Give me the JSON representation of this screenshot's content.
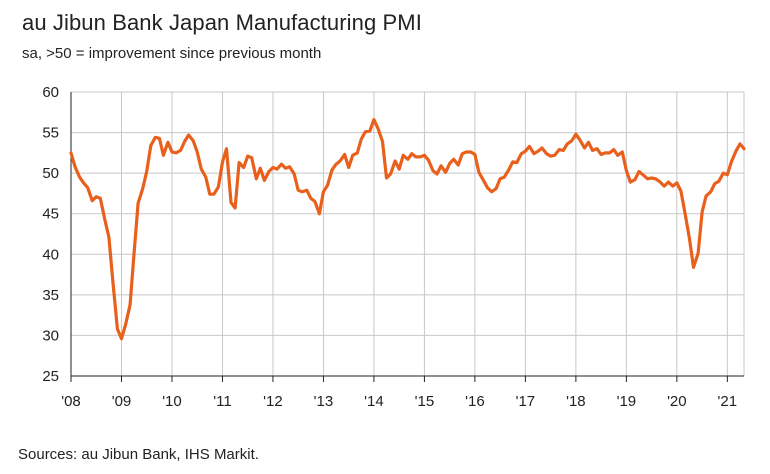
{
  "chart_data": {
    "type": "line",
    "title": "au Jibun Bank Japan Manufacturing PMI",
    "subtitle": "sa, >50 = improvement since previous month",
    "source": "Sources: au Jibun Bank, IHS Markit.",
    "xlabel": "",
    "ylabel": "",
    "ylim": [
      25,
      60
    ],
    "yticks": [
      25,
      30,
      35,
      40,
      45,
      50,
      55,
      60
    ],
    "x_start": 2008.0,
    "x_end": 2021.33,
    "xticks": [
      {
        "value": 2008,
        "label": "'08"
      },
      {
        "value": 2009,
        "label": "'09"
      },
      {
        "value": 2010,
        "label": "'10"
      },
      {
        "value": 2011,
        "label": "'11"
      },
      {
        "value": 2012,
        "label": "'12"
      },
      {
        "value": 2013,
        "label": "'13"
      },
      {
        "value": 2014,
        "label": "'14"
      },
      {
        "value": 2015,
        "label": "'15"
      },
      {
        "value": 2016,
        "label": "'16"
      },
      {
        "value": 2017,
        "label": "'17"
      },
      {
        "value": 2018,
        "label": "'18"
      },
      {
        "value": 2019,
        "label": "'19"
      },
      {
        "value": 2020,
        "label": "'20"
      },
      {
        "value": 2021,
        "label": "'21"
      }
    ],
    "grid": true,
    "series": [
      {
        "name": "au Jibun Bank Japan Manufacturing PMI",
        "color": "#E8601C",
        "points": [
          [
            2008.0,
            52.5
          ],
          [
            2008.08,
            50.8
          ],
          [
            2008.17,
            49.5
          ],
          [
            2008.25,
            48.8
          ],
          [
            2008.33,
            48.2
          ],
          [
            2008.42,
            46.6
          ],
          [
            2008.5,
            47.1
          ],
          [
            2008.58,
            46.9
          ],
          [
            2008.67,
            44.3
          ],
          [
            2008.75,
            42.1
          ],
          [
            2008.83,
            36.6
          ],
          [
            2008.92,
            30.8
          ],
          [
            2009.0,
            29.6
          ],
          [
            2009.08,
            31.3
          ],
          [
            2009.17,
            33.8
          ],
          [
            2009.25,
            40.2
          ],
          [
            2009.33,
            46.3
          ],
          [
            2009.42,
            48.1
          ],
          [
            2009.5,
            50.2
          ],
          [
            2009.58,
            53.4
          ],
          [
            2009.67,
            54.4
          ],
          [
            2009.75,
            54.3
          ],
          [
            2009.83,
            52.2
          ],
          [
            2009.92,
            53.8
          ],
          [
            2010.0,
            52.6
          ],
          [
            2010.08,
            52.5
          ],
          [
            2010.17,
            52.8
          ],
          [
            2010.25,
            53.9
          ],
          [
            2010.33,
            54.7
          ],
          [
            2010.42,
            54.0
          ],
          [
            2010.5,
            52.6
          ],
          [
            2010.58,
            50.5
          ],
          [
            2010.67,
            49.5
          ],
          [
            2010.75,
            47.4
          ],
          [
            2010.83,
            47.4
          ],
          [
            2010.92,
            48.3
          ],
          [
            2011.0,
            51.4
          ],
          [
            2011.08,
            53.0
          ],
          [
            2011.17,
            46.4
          ],
          [
            2011.25,
            45.7
          ],
          [
            2011.33,
            51.3
          ],
          [
            2011.42,
            50.7
          ],
          [
            2011.5,
            52.1
          ],
          [
            2011.58,
            51.9
          ],
          [
            2011.67,
            49.3
          ],
          [
            2011.75,
            50.6
          ],
          [
            2011.83,
            49.1
          ],
          [
            2011.92,
            50.2
          ],
          [
            2012.0,
            50.7
          ],
          [
            2012.08,
            50.5
          ],
          [
            2012.17,
            51.1
          ],
          [
            2012.25,
            50.6
          ],
          [
            2012.33,
            50.8
          ],
          [
            2012.42,
            49.9
          ],
          [
            2012.5,
            47.9
          ],
          [
            2012.58,
            47.7
          ],
          [
            2012.67,
            47.9
          ],
          [
            2012.75,
            46.9
          ],
          [
            2012.83,
            46.5
          ],
          [
            2012.92,
            45.0
          ],
          [
            2013.0,
            47.7
          ],
          [
            2013.08,
            48.5
          ],
          [
            2013.17,
            50.4
          ],
          [
            2013.25,
            51.1
          ],
          [
            2013.33,
            51.5
          ],
          [
            2013.42,
            52.3
          ],
          [
            2013.5,
            50.7
          ],
          [
            2013.58,
            52.2
          ],
          [
            2013.67,
            52.5
          ],
          [
            2013.75,
            54.2
          ],
          [
            2013.83,
            55.1
          ],
          [
            2013.92,
            55.2
          ],
          [
            2014.0,
            56.6
          ],
          [
            2014.08,
            55.5
          ],
          [
            2014.17,
            53.9
          ],
          [
            2014.25,
            49.4
          ],
          [
            2014.33,
            49.9
          ],
          [
            2014.42,
            51.5
          ],
          [
            2014.5,
            50.5
          ],
          [
            2014.58,
            52.2
          ],
          [
            2014.67,
            51.7
          ],
          [
            2014.75,
            52.4
          ],
          [
            2014.83,
            52.0
          ],
          [
            2014.92,
            52.0
          ],
          [
            2015.0,
            52.2
          ],
          [
            2015.08,
            51.6
          ],
          [
            2015.17,
            50.3
          ],
          [
            2015.25,
            49.9
          ],
          [
            2015.33,
            50.9
          ],
          [
            2015.42,
            50.1
          ],
          [
            2015.5,
            51.2
          ],
          [
            2015.58,
            51.7
          ],
          [
            2015.67,
            51.0
          ],
          [
            2015.75,
            52.4
          ],
          [
            2015.83,
            52.6
          ],
          [
            2015.92,
            52.6
          ],
          [
            2016.0,
            52.3
          ],
          [
            2016.08,
            50.1
          ],
          [
            2016.17,
            49.1
          ],
          [
            2016.25,
            48.2
          ],
          [
            2016.33,
            47.7
          ],
          [
            2016.42,
            48.1
          ],
          [
            2016.5,
            49.3
          ],
          [
            2016.58,
            49.5
          ],
          [
            2016.67,
            50.4
          ],
          [
            2016.75,
            51.4
          ],
          [
            2016.83,
            51.3
          ],
          [
            2016.92,
            52.4
          ],
          [
            2017.0,
            52.7
          ],
          [
            2017.08,
            53.3
          ],
          [
            2017.17,
            52.4
          ],
          [
            2017.25,
            52.7
          ],
          [
            2017.33,
            53.1
          ],
          [
            2017.42,
            52.4
          ],
          [
            2017.5,
            52.1
          ],
          [
            2017.58,
            52.2
          ],
          [
            2017.67,
            52.9
          ],
          [
            2017.75,
            52.8
          ],
          [
            2017.83,
            53.6
          ],
          [
            2017.92,
            54.0
          ],
          [
            2018.0,
            54.8
          ],
          [
            2018.08,
            54.1
          ],
          [
            2018.17,
            53.1
          ],
          [
            2018.25,
            53.8
          ],
          [
            2018.33,
            52.8
          ],
          [
            2018.42,
            53.0
          ],
          [
            2018.5,
            52.3
          ],
          [
            2018.58,
            52.5
          ],
          [
            2018.67,
            52.5
          ],
          [
            2018.75,
            52.9
          ],
          [
            2018.83,
            52.2
          ],
          [
            2018.92,
            52.6
          ],
          [
            2019.0,
            50.3
          ],
          [
            2019.08,
            48.9
          ],
          [
            2019.17,
            49.2
          ],
          [
            2019.25,
            50.2
          ],
          [
            2019.33,
            49.8
          ],
          [
            2019.42,
            49.3
          ],
          [
            2019.5,
            49.4
          ],
          [
            2019.58,
            49.3
          ],
          [
            2019.67,
            48.9
          ],
          [
            2019.75,
            48.4
          ],
          [
            2019.83,
            48.9
          ],
          [
            2019.92,
            48.4
          ],
          [
            2020.0,
            48.8
          ],
          [
            2020.08,
            47.8
          ],
          [
            2020.17,
            44.8
          ],
          [
            2020.25,
            41.9
          ],
          [
            2020.33,
            38.4
          ],
          [
            2020.42,
            40.1
          ],
          [
            2020.5,
            45.2
          ],
          [
            2020.58,
            47.2
          ],
          [
            2020.67,
            47.7
          ],
          [
            2020.75,
            48.7
          ],
          [
            2020.83,
            49.0
          ],
          [
            2020.92,
            50.0
          ],
          [
            2021.0,
            49.8
          ],
          [
            2021.08,
            51.4
          ],
          [
            2021.17,
            52.7
          ],
          [
            2021.25,
            53.6
          ],
          [
            2021.33,
            53.0
          ]
        ]
      }
    ]
  }
}
